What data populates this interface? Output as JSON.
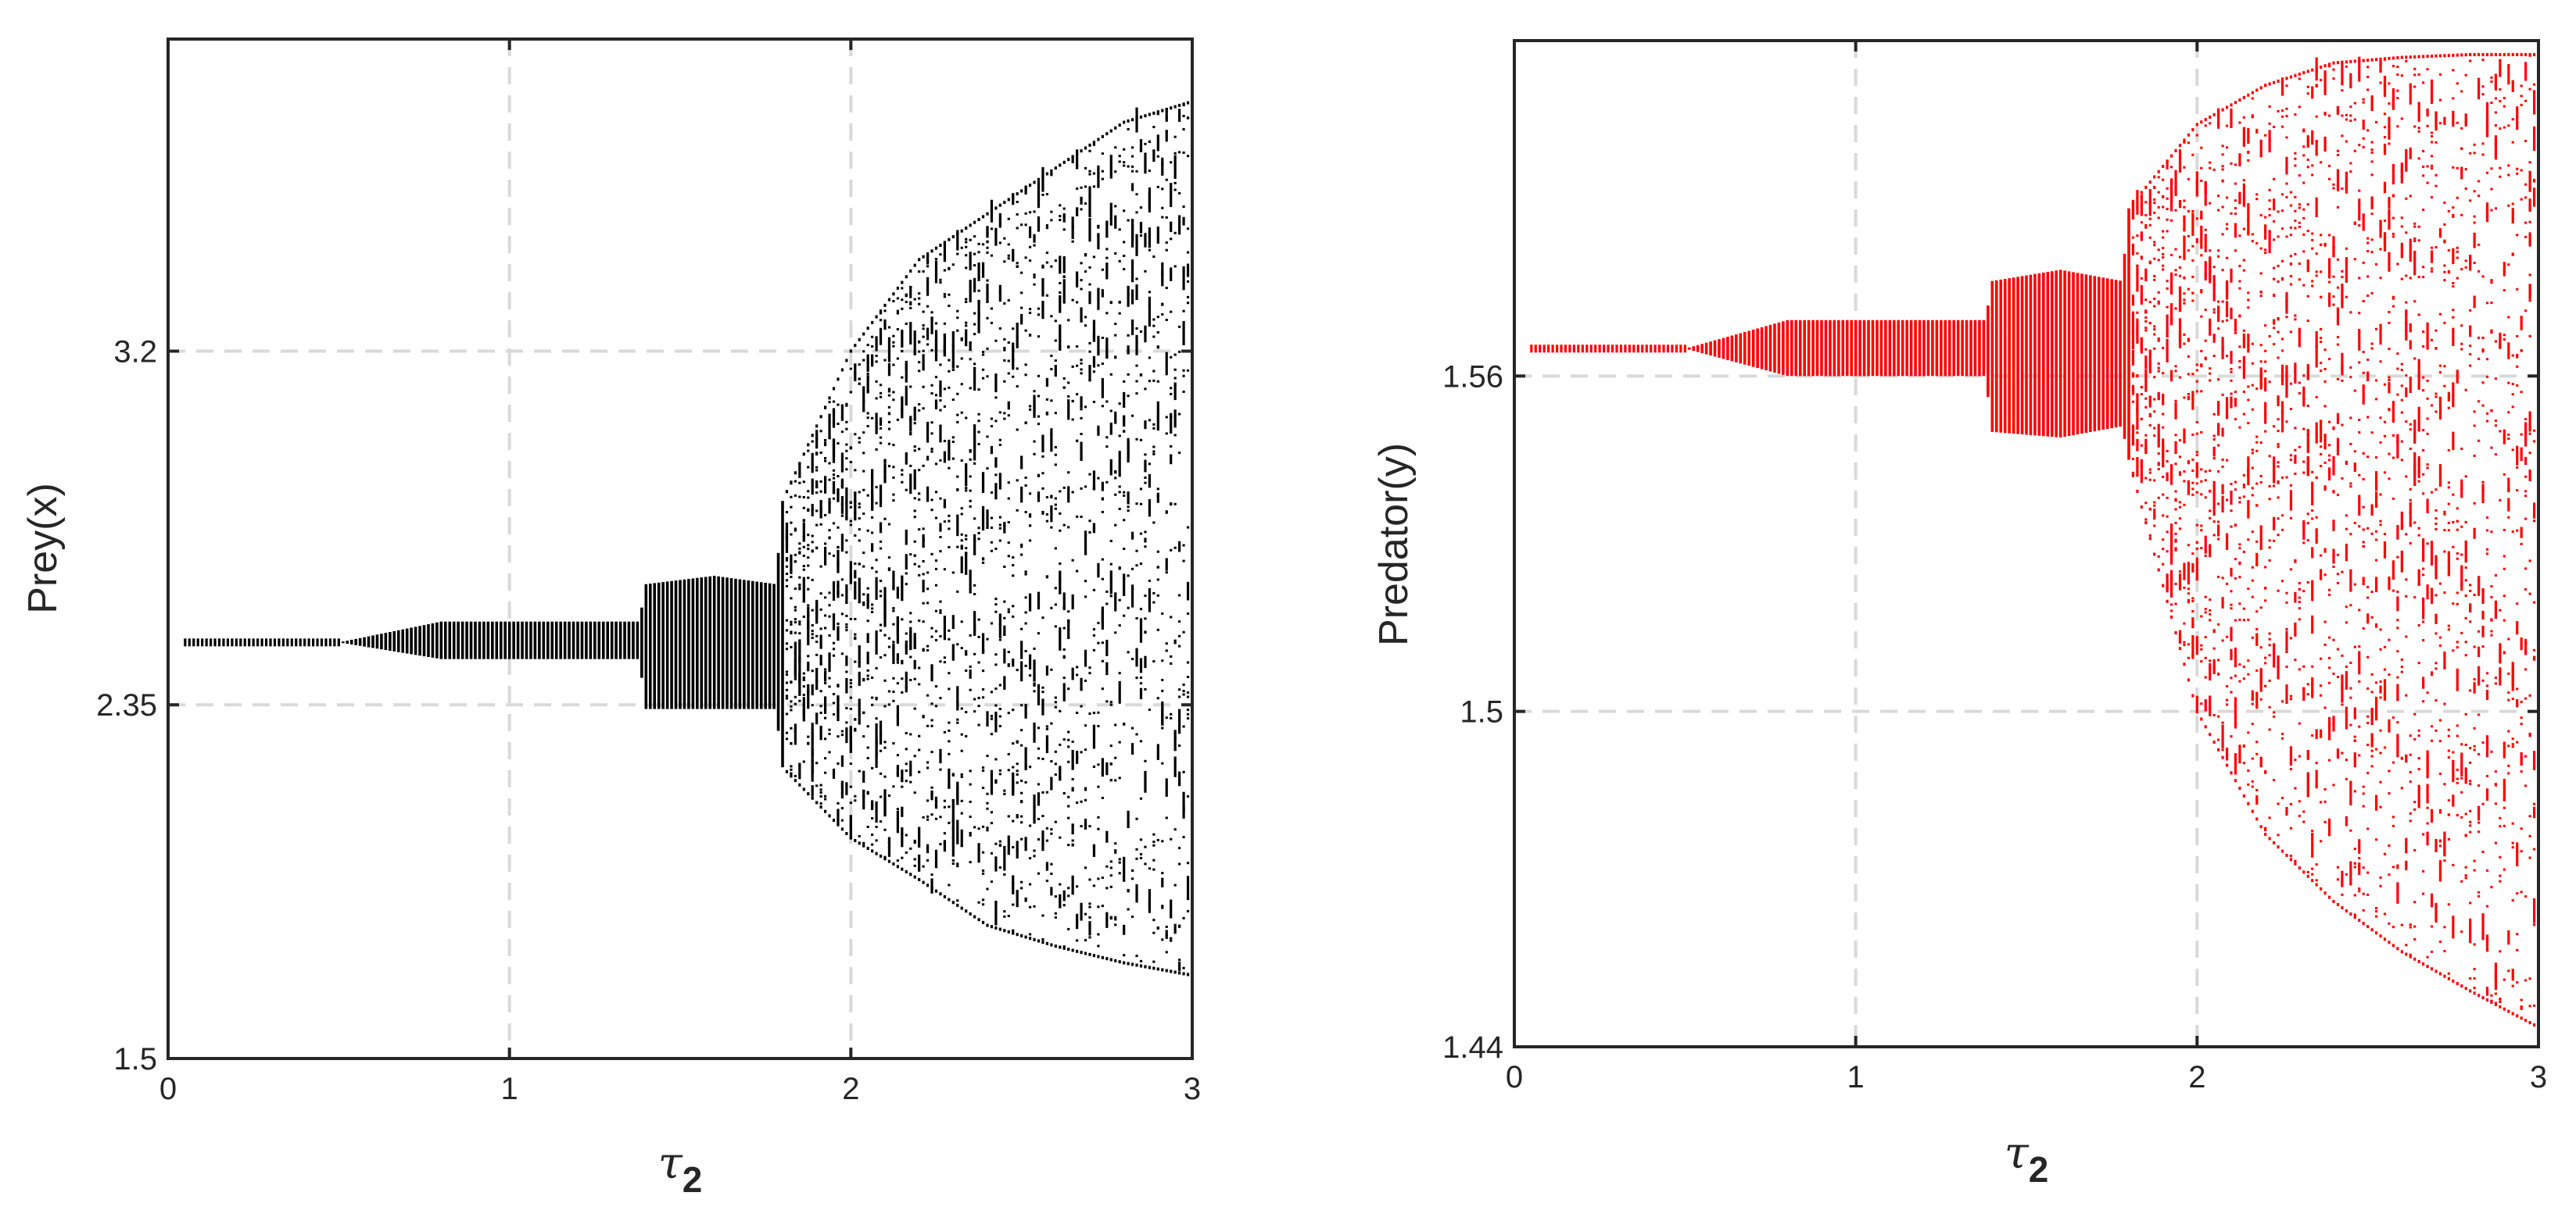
{
  "chart_data": [
    {
      "type": "scatter",
      "title": "",
      "xlabel_symbol": "τ",
      "xlabel_subscript": "2",
      "ylabel": "Prey(x)",
      "xlim": [
        0,
        3
      ],
      "ylim": [
        1.5,
        3.95
      ],
      "xticks": [
        "0",
        "1",
        "2",
        "3"
      ],
      "xtick_values": [
        0,
        1,
        2,
        3
      ],
      "yticks": [
        "1.5",
        "2.35",
        "3.2"
      ],
      "ytick_values": [
        1.5,
        2.35,
        3.2
      ],
      "grid": true,
      "marker_color": "#000000",
      "description_of_series": "bifurcation diagram: stable equilibrium near 2.50 for τ2 < 0.8, narrow periodic band 0.8–1.38, period doubling bulge 1.38–1.78 (2.34–2.66), chaotic band widening from 1.8 to 3 (lower bound 1.70, upper bound 3.80 at τ2 = 3)",
      "series": [
        {
          "tau2": [
            0.05,
            0.5,
            0.8,
            1.0,
            1.38,
            1.4,
            1.6,
            1.78,
            1.8,
            2.0,
            2.2,
            2.4,
            2.6,
            2.8,
            3.0
          ],
          "y_min": [
            2.5,
            2.5,
            2.46,
            2.46,
            2.46,
            2.34,
            2.34,
            2.34,
            2.2,
            2.03,
            1.93,
            1.82,
            1.77,
            1.73,
            1.7
          ],
          "y_max": [
            2.5,
            2.5,
            2.55,
            2.55,
            2.55,
            2.64,
            2.66,
            2.64,
            2.84,
            3.2,
            3.42,
            3.53,
            3.64,
            3.75,
            3.8
          ]
        }
      ]
    },
    {
      "type": "scatter",
      "title": "",
      "xlabel_symbol": "τ",
      "xlabel_subscript": "2",
      "ylabel": "Predator(y)",
      "xlim": [
        0,
        3
      ],
      "ylim": [
        1.44,
        1.62
      ],
      "xticks": [
        "0",
        "1",
        "2",
        "3"
      ],
      "xtick_values": [
        0,
        1,
        2,
        3
      ],
      "yticks": [
        "1.44",
        "1.5",
        "1.56"
      ],
      "ytick_values": [
        1.44,
        1.5,
        1.56
      ],
      "grid": true,
      "marker_color": "#ff0000",
      "description_of_series": "bifurcation diagram: stable value near 1.5649 for τ2 < 0.8, narrow periodic band 0.8–1.38, bulge 1.38–1.78 (1.550–1.579), chaotic band widening from 1.8 to 3 (upper bound 1.6175, lower bound 1.4435 at τ2 = 3)",
      "series": [
        {
          "tau2": [
            0.05,
            0.5,
            0.8,
            1.0,
            1.38,
            1.4,
            1.6,
            1.78,
            1.8,
            2.0,
            2.2,
            2.4,
            2.6,
            2.8,
            3.0
          ],
          "y_min": [
            1.5649,
            1.5649,
            1.56,
            1.56,
            1.56,
            1.55,
            1.549,
            1.551,
            1.545,
            1.5,
            1.478,
            1.466,
            1.457,
            1.45,
            1.4435
          ],
          "y_max": [
            1.5649,
            1.5649,
            1.57,
            1.57,
            1.57,
            1.577,
            1.579,
            1.577,
            1.59,
            1.605,
            1.612,
            1.616,
            1.617,
            1.6175,
            1.6175
          ]
        }
      ]
    }
  ]
}
